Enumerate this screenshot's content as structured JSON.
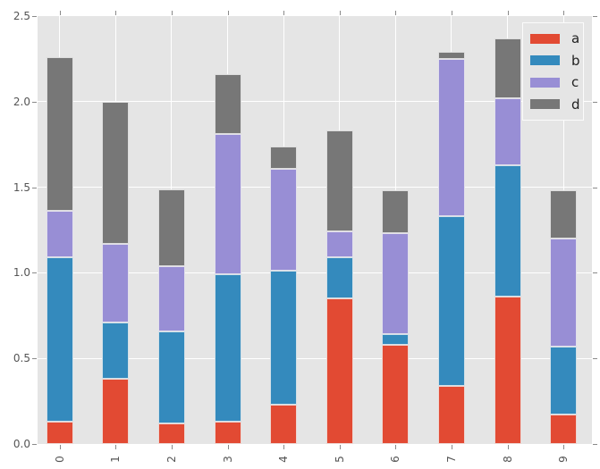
{
  "chart_data": {
    "type": "bar",
    "stacked": true,
    "title": "",
    "xlabel": "",
    "ylabel": "",
    "categories": [
      "0",
      "1",
      "2",
      "3",
      "4",
      "5",
      "6",
      "7",
      "8",
      "9"
    ],
    "series": [
      {
        "name": "a",
        "color": "#E24A33",
        "values": [
          0.13,
          0.38,
          0.12,
          0.13,
          0.23,
          0.85,
          0.58,
          0.34,
          0.86,
          0.17
        ]
      },
      {
        "name": "b",
        "color": "#348ABD",
        "values": [
          0.96,
          0.33,
          0.54,
          0.86,
          0.78,
          0.24,
          0.06,
          0.99,
          0.77,
          0.4
        ]
      },
      {
        "name": "c",
        "color": "#988ED5",
        "values": [
          0.27,
          0.46,
          0.38,
          0.82,
          0.6,
          0.15,
          0.59,
          0.92,
          0.39,
          0.63
        ]
      },
      {
        "name": "d",
        "color": "#777777",
        "values": [
          0.9,
          0.83,
          0.45,
          0.35,
          0.13,
          0.59,
          0.25,
          0.04,
          0.35,
          0.28
        ]
      }
    ],
    "ylim": [
      0,
      2.5
    ],
    "ytick_labels": [
      "0.0",
      "0.5",
      "1.0",
      "1.5",
      "2.0",
      "2.5"
    ],
    "grid": true,
    "legend": {
      "position": "upper right",
      "entries": [
        "a",
        "b",
        "c",
        "d"
      ]
    },
    "style": {
      "plot_background": "#E5E5E5",
      "figure_background": "#FFFFFF",
      "gridline_color": "#FFFFFF",
      "tick_label_color": "#555555",
      "legend_label_color": "#1F1F1F"
    }
  }
}
